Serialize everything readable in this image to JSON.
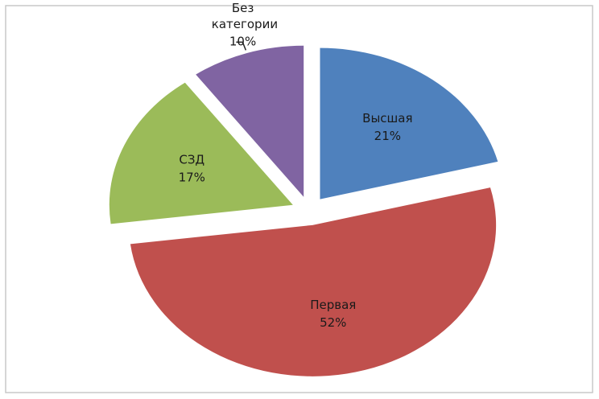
{
  "chart_data": {
    "type": "pie",
    "categories": [
      "Высшая",
      "Первая",
      "СЗД",
      "Без категории"
    ],
    "values": [
      21,
      52,
      17,
      10
    ],
    "value_labels": [
      "21%",
      "52%",
      "17%",
      "10%"
    ],
    "colors": [
      "#4f81bd",
      "#c0504d",
      "#9bbb59",
      "#8064a2"
    ]
  }
}
